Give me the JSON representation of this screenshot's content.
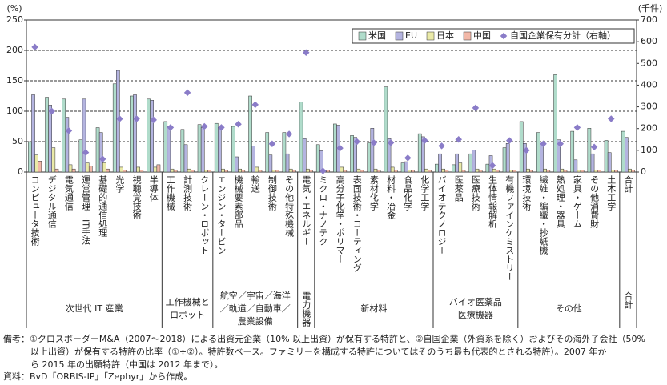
{
  "chart_data": {
    "type": "bar",
    "y_unit": "(%)",
    "y2_unit": "(千件)",
    "categories": [
      "コンピュータ技術",
      "デジタル通信",
      "電気通信",
      "運営管理ーIT手法",
      "基礎的通信処理",
      "光学",
      "視聴覚技術",
      "半導体",
      "工作機械",
      "計測技術",
      "クレーン・ロボット",
      "エンジン・タービン",
      "機械要素部品",
      "輸送",
      "制御技術",
      "その他特殊機械",
      "電気・エネルギー",
      "ミクロ・ナノテク",
      "高分子化学・ポリマー",
      "表面技術・コーティング",
      "素材化学",
      "材料・冶金",
      "食品化学",
      "化学工学",
      "バイオテクノロジー",
      "医薬品",
      "医療技術",
      "生体情報解析",
      "有機ファインケミストリー",
      "環境技術",
      "繊維・編織・抄紙機",
      "熱処理・器具",
      "家具・ゲーム",
      "その他消費財",
      "土木工学",
      "合計"
    ],
    "series": [
      {
        "name": "米国",
        "color": "#b0dccb",
        "values": [
          50,
          123,
          120,
          53,
          73,
          145,
          125,
          120,
          83,
          70,
          78,
          80,
          75,
          125,
          65,
          65,
          115,
          45,
          79,
          60,
          48,
          140,
          15,
          63,
          13,
          12,
          30,
          13,
          40,
          83,
          65,
          160,
          67,
          72,
          52,
          67
        ]
      },
      {
        "name": "EU",
        "color": "#b4b4e0",
        "values": [
          127,
          110,
          90,
          120,
          65,
          167,
          127,
          118,
          75,
          45,
          73,
          73,
          25,
          43,
          28,
          30,
          55,
          35,
          77,
          57,
          72,
          55,
          17,
          58,
          30,
          30,
          36,
          27,
          47,
          47,
          47,
          53,
          20,
          30,
          32,
          57
        ]
      },
      {
        "name": "日本",
        "color": "#eaeaa8",
        "values": [
          28,
          40,
          12,
          15,
          15,
          8,
          8,
          8,
          5,
          5,
          3,
          5,
          5,
          8,
          3,
          5,
          5,
          3,
          8,
          5,
          5,
          8,
          3,
          5,
          5,
          15,
          5,
          5,
          3,
          5,
          5,
          5,
          3,
          3,
          3,
          5
        ]
      },
      {
        "name": "中国",
        "color": "#f2b8a8",
        "values": [
          18,
          5,
          5,
          10,
          5,
          3,
          3,
          12,
          3,
          3,
          3,
          3,
          3,
          3,
          3,
          3,
          3,
          3,
          3,
          3,
          3,
          3,
          3,
          3,
          3,
          3,
          3,
          3,
          3,
          3,
          3,
          3,
          3,
          3,
          3,
          3
        ]
      },
      {
        "name": "自国企業保有分計（右軸）",
        "type": "scatter",
        "axis": "y2",
        "color": "#8a7cc8",
        "values": [
          575,
          280,
          190,
          90,
          60,
          245,
          245,
          240,
          205,
          365,
          210,
          205,
          220,
          310,
          130,
          175,
          550,
          5,
          110,
          140,
          135,
          135,
          65,
          145,
          120,
          150,
          295,
          30,
          145,
          100,
          130,
          130,
          205,
          115,
          245,
          null
        ]
      }
    ],
    "groups": [
      {
        "label_lines": [
          "次世代 IT 産業"
        ],
        "span": 8
      },
      {
        "label_lines": [
          "工作機械と",
          "ロボット"
        ],
        "span": 3
      },
      {
        "label_lines": [
          "航空／宇宙／海洋",
          "／軌道／自動車／",
          "農業設備"
        ],
        "span": 5
      },
      {
        "label_lines": [
          "電力機器"
        ],
        "span": 1
      },
      {
        "label_lines": [
          "新材料"
        ],
        "span": 7
      },
      {
        "label_lines": [
          "バイオ医薬品",
          "医療機器"
        ],
        "span": 5
      },
      {
        "label_lines": [
          "その他"
        ],
        "span": 6
      },
      {
        "label_lines": [
          "合計"
        ],
        "span": 1
      }
    ],
    "ylim": [
      0,
      250
    ],
    "yticks": [
      0,
      50,
      100,
      150,
      200,
      250
    ],
    "y2lim": [
      0,
      700
    ],
    "y2ticks": [
      0,
      100,
      200,
      300,
      400,
      500,
      600,
      700
    ],
    "grid": true,
    "legend": "top-right"
  },
  "notes": [
    "備考：①クロスボーダーM&A（2007～2018）による出資元企業（10% 以上出資）が保有する特許と、②自国企業（外資系を除く）およびその海外子会社（50%",
    "以上出資）が保有する特許の比率（①÷②）。特許数ベース。ファミリーを構成する特許についてはそのうち最も代表的とされる特許）。2007 年か",
    "ら 2015 年の出願特許（中国は 2012 年まで）。"
  ],
  "source": "資料：BvD「ORBIS-IP」「Zephyr」から作成。"
}
